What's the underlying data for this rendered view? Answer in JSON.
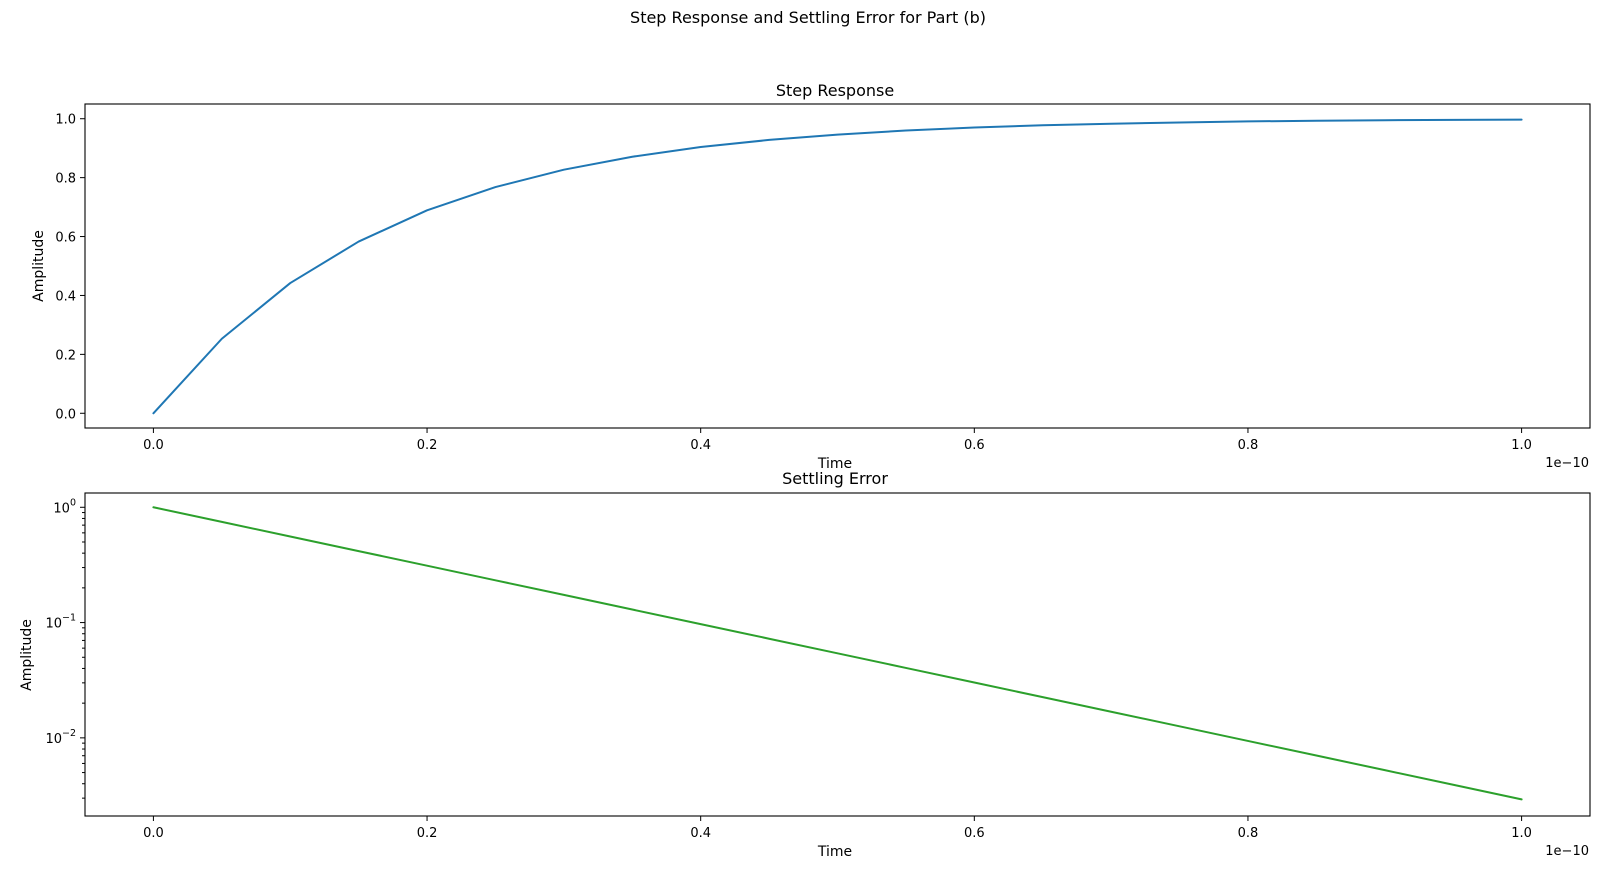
{
  "figure": {
    "suptitle": "Step Response and Settling Error for Part (b)"
  },
  "chart_data": [
    {
      "type": "line",
      "title": "Step Response",
      "xlabel": "Time",
      "ylabel": "Amplitude",
      "x_offset_label": "1e−10",
      "xlim": [
        -5e-12,
        1.05e-10
      ],
      "ylim": [
        -0.05,
        1.05
      ],
      "yscale": "linear",
      "grid": false,
      "x_ticks": [
        {
          "value": 0.0,
          "label": "0.0"
        },
        {
          "value": 2e-11,
          "label": "0.2"
        },
        {
          "value": 4e-11,
          "label": "0.4"
        },
        {
          "value": 6e-11,
          "label": "0.6"
        },
        {
          "value": 8e-11,
          "label": "0.8"
        },
        {
          "value": 1e-10,
          "label": "1.0"
        }
      ],
      "y_ticks": [
        {
          "value": 0.0,
          "label": "0.0"
        },
        {
          "value": 0.2,
          "label": "0.2"
        },
        {
          "value": 0.4,
          "label": "0.4"
        },
        {
          "value": 0.6,
          "label": "0.6"
        },
        {
          "value": 0.8,
          "label": "0.8"
        },
        {
          "value": 1.0,
          "label": "1.0"
        }
      ],
      "series": [
        {
          "color": "#1f77b4",
          "x": [
            0,
            5e-12,
            1e-11,
            1.5e-11,
            2e-11,
            2.5e-11,
            3e-11,
            3.5e-11,
            4e-11,
            4.5e-11,
            5e-11,
            5.5e-11,
            6e-11,
            6.5e-11,
            7e-11,
            7.5e-11,
            8e-11,
            8.5e-11,
            9e-11,
            9.5e-11,
            1e-10
          ],
          "y": [
            0.0,
            0.253,
            0.442,
            0.583,
            0.689,
            0.768,
            0.827,
            0.871,
            0.904,
            0.928,
            0.946,
            0.96,
            0.97,
            0.978,
            0.983,
            0.987,
            0.991,
            0.993,
            0.995,
            0.996,
            0.997
          ]
        }
      ]
    },
    {
      "type": "line",
      "title": "Settling Error",
      "xlabel": "Time",
      "ylabel": "Amplitude",
      "x_offset_label": "1e−10",
      "xlim": [
        -5e-12,
        1.05e-10
      ],
      "ylim": [
        0.0021,
        1.33
      ],
      "yscale": "log",
      "grid": false,
      "x_ticks": [
        {
          "value": 0.0,
          "label": "0.0"
        },
        {
          "value": 2e-11,
          "label": "0.2"
        },
        {
          "value": 4e-11,
          "label": "0.4"
        },
        {
          "value": 6e-11,
          "label": "0.6"
        },
        {
          "value": 8e-11,
          "label": "0.8"
        },
        {
          "value": 1e-10,
          "label": "1.0"
        }
      ],
      "y_ticks": [
        {
          "value": 1,
          "base": "10",
          "exp": "0"
        },
        {
          "value": 0.1,
          "base": "10",
          "exp": "−1"
        },
        {
          "value": 0.01,
          "base": "10",
          "exp": "−2"
        }
      ],
      "series": [
        {
          "color": "#2ca02c",
          "x": [
            0,
            5e-12,
            1e-11,
            1.5e-11,
            2e-11,
            2.5e-11,
            3e-11,
            3.5e-11,
            4e-11,
            4.5e-11,
            5e-11,
            5.5e-11,
            6e-11,
            6.5e-11,
            7e-11,
            7.5e-11,
            8e-11,
            8.5e-11,
            9e-11,
            9.5e-11,
            1e-10
          ],
          "y": [
            1.0,
            0.747,
            0.558,
            0.4168,
            0.3114,
            0.2326,
            0.1738,
            0.1298,
            0.09697,
            0.07244,
            0.05411,
            0.04042,
            0.0302,
            0.02256,
            0.01685,
            0.01259,
            0.009404,
            0.007025,
            0.005248,
            0.00392,
            0.002928
          ]
        }
      ]
    }
  ]
}
